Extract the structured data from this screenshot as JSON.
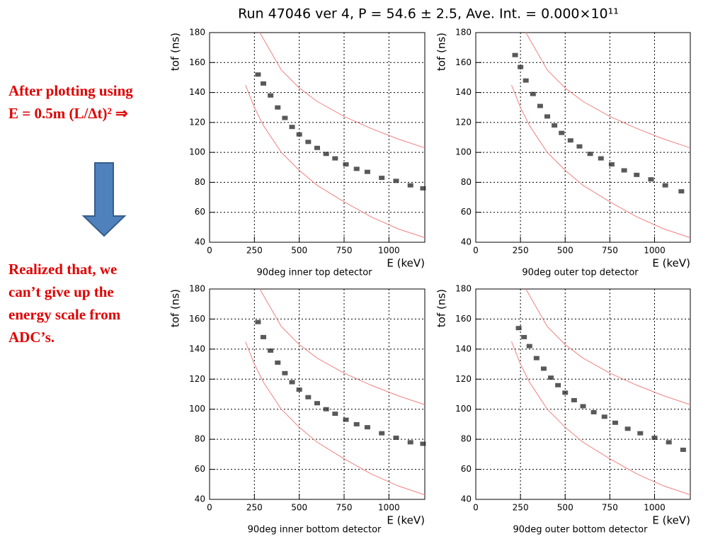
{
  "title": "Run 47046 ver 4,   P = 54.6 ± 2.5,   Ave. Int. = 0.000×10¹¹",
  "notes": [
    {
      "lines": [
        "After plotting using",
        "E = 0.5m (L/Δt)² ⇒"
      ]
    },
    {
      "lines": [
        "Realized that, we",
        "can’t give up the",
        "energy scale from",
        "ADC’s."
      ]
    }
  ],
  "chart_data": [
    {
      "type": "scatter",
      "title": "90deg inner top detector",
      "xlabel": "E (keV)",
      "ylabel": "tof (ns)",
      "xlim": [
        0,
        1200
      ],
      "ylim": [
        40,
        180
      ],
      "xticks": [
        0,
        250,
        500,
        750,
        1000
      ],
      "yticks": [
        40,
        60,
        80,
        100,
        120,
        140,
        160,
        180
      ],
      "grid": true,
      "color": "#222222",
      "x": [
        270,
        300,
        340,
        380,
        420,
        460,
        500,
        550,
        600,
        650,
        700,
        760,
        820,
        880,
        960,
        1040,
        1120,
        1190
      ],
      "y": [
        152,
        146,
        138,
        130,
        123,
        117,
        112,
        107,
        103,
        99,
        96,
        92,
        89,
        87,
        83,
        81,
        78,
        76
      ],
      "curves": [
        {
          "color": "#f08080",
          "x": [
            280,
            400,
            500,
            600,
            750,
            900,
            1050,
            1200
          ],
          "y": [
            180,
            155,
            143,
            134,
            124,
            116,
            109,
            103
          ]
        },
        {
          "color": "#f08080",
          "x": [
            200,
            250,
            300,
            400,
            500,
            600,
            750,
            900,
            1050,
            1200
          ],
          "y": [
            145,
            130,
            118,
            100,
            88,
            78,
            67,
            57,
            49,
            43
          ]
        }
      ]
    },
    {
      "type": "scatter",
      "title": "90deg outer top detector",
      "xlabel": "E (keV)",
      "ylabel": "tof (ns)",
      "xlim": [
        0,
        1200
      ],
      "ylim": [
        40,
        180
      ],
      "xticks": [
        0,
        250,
        500,
        750,
        1000
      ],
      "yticks": [
        40,
        60,
        80,
        100,
        120,
        140,
        160,
        180
      ],
      "grid": true,
      "color": "#222222",
      "x": [
        220,
        250,
        280,
        320,
        360,
        400,
        440,
        480,
        530,
        580,
        640,
        700,
        760,
        830,
        900,
        980,
        1060,
        1150
      ],
      "y": [
        165,
        157,
        148,
        139,
        131,
        124,
        118,
        113,
        108,
        104,
        99,
        96,
        92,
        88,
        85,
        82,
        78,
        74
      ],
      "curves": [
        {
          "color": "#f08080",
          "x": [
            280,
            400,
            500,
            600,
            750,
            900,
            1050,
            1200
          ],
          "y": [
            180,
            155,
            143,
            134,
            124,
            116,
            109,
            103
          ]
        },
        {
          "color": "#f08080",
          "x": [
            200,
            250,
            300,
            400,
            500,
            600,
            750,
            900,
            1050,
            1200
          ],
          "y": [
            145,
            130,
            118,
            100,
            88,
            78,
            67,
            57,
            49,
            43
          ]
        }
      ]
    },
    {
      "type": "scatter",
      "title": "90deg inner bottom detector",
      "xlabel": "E (keV)",
      "ylabel": "tof (ns)",
      "xlim": [
        0,
        1200
      ],
      "ylim": [
        40,
        180
      ],
      "xticks": [
        0,
        250,
        500,
        750,
        1000
      ],
      "yticks": [
        40,
        60,
        80,
        100,
        120,
        140,
        160,
        180
      ],
      "grid": true,
      "color": "#222222",
      "x": [
        270,
        300,
        340,
        380,
        420,
        460,
        500,
        550,
        600,
        650,
        700,
        760,
        820,
        880,
        960,
        1040,
        1120,
        1190
      ],
      "y": [
        158,
        148,
        139,
        131,
        124,
        118,
        113,
        108,
        104,
        100,
        97,
        93,
        90,
        88,
        84,
        81,
        78,
        77
      ],
      "curves": [
        {
          "color": "#f08080",
          "x": [
            280,
            400,
            500,
            600,
            750,
            900,
            1050,
            1200
          ],
          "y": [
            180,
            155,
            143,
            134,
            124,
            116,
            109,
            103
          ]
        },
        {
          "color": "#f08080",
          "x": [
            200,
            250,
            300,
            400,
            500,
            600,
            750,
            900,
            1050,
            1200
          ],
          "y": [
            145,
            130,
            118,
            100,
            88,
            78,
            67,
            57,
            49,
            43
          ]
        }
      ]
    },
    {
      "type": "scatter",
      "title": "90deg outer bottom detector",
      "xlabel": "E (keV)",
      "ylabel": "tof (ns)",
      "xlim": [
        0,
        1200
      ],
      "ylim": [
        40,
        180
      ],
      "xticks": [
        0,
        250,
        500,
        750,
        1000
      ],
      "yticks": [
        40,
        60,
        80,
        100,
        120,
        140,
        160,
        180
      ],
      "grid": true,
      "color": "#222222",
      "x": [
        240,
        270,
        300,
        340,
        380,
        420,
        460,
        500,
        550,
        600,
        660,
        720,
        780,
        850,
        920,
        1000,
        1080,
        1160
      ],
      "y": [
        154,
        148,
        142,
        134,
        127,
        121,
        116,
        111,
        106,
        102,
        98,
        95,
        91,
        87,
        84,
        81,
        78,
        73
      ],
      "curves": [
        {
          "color": "#f08080",
          "x": [
            280,
            400,
            500,
            600,
            750,
            900,
            1050,
            1200
          ],
          "y": [
            180,
            155,
            143,
            134,
            124,
            116,
            109,
            103
          ]
        },
        {
          "color": "#f08080",
          "x": [
            200,
            250,
            300,
            400,
            500,
            600,
            750,
            900,
            1050,
            1200
          ],
          "y": [
            145,
            130,
            118,
            100,
            88,
            78,
            67,
            57,
            49,
            43
          ]
        }
      ]
    }
  ]
}
